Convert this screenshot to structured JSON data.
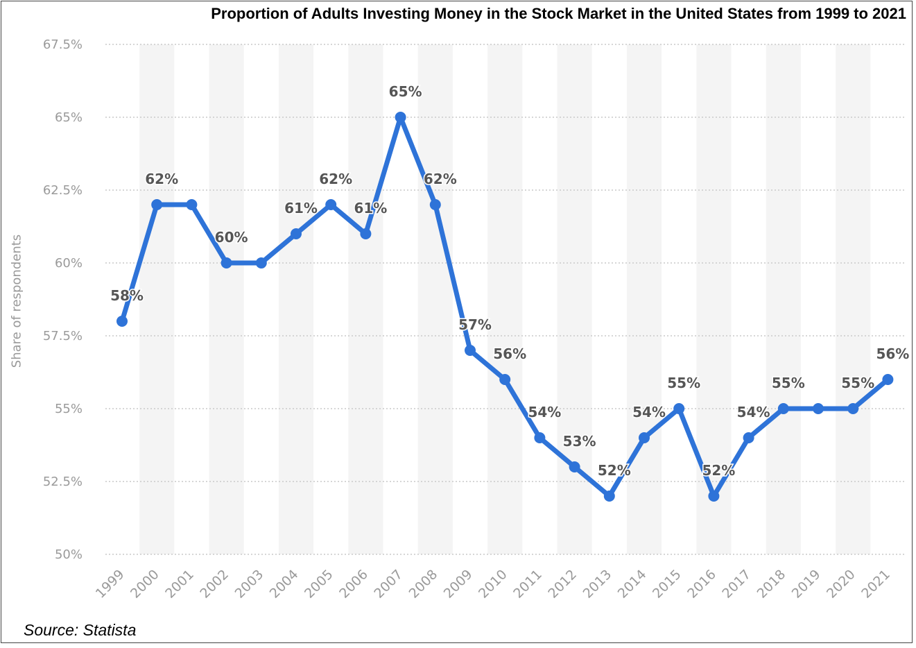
{
  "chart_data": {
    "type": "line",
    "title": "Proportion of Adults Investing Money in the Stock Market in the United States from 1999 to 2021",
    "ylabel": "Share of respondents",
    "xlabel": "",
    "source": "Source: Statista",
    "ylim": [
      50,
      67.5
    ],
    "yticks": [
      50,
      52.5,
      55,
      57.5,
      60,
      62.5,
      65,
      67.5
    ],
    "ytick_labels": [
      "50%",
      "52.5%",
      "55%",
      "57.5%",
      "60%",
      "62.5%",
      "65%",
      "67.5%"
    ],
    "categories": [
      "1999",
      "2000",
      "2001",
      "2002",
      "2003",
      "2004",
      "2005",
      "2006",
      "2007",
      "2008",
      "2009",
      "2010",
      "2011",
      "2012",
      "2013",
      "2014",
      "2015",
      "2016",
      "2017",
      "2018",
      "2019",
      "2020",
      "2021"
    ],
    "series": [
      {
        "values": [
          58,
          62,
          62,
          60,
          60,
          61,
          62,
          61,
          65,
          62,
          57,
          56,
          54,
          53,
          52,
          54,
          55,
          52,
          54,
          55,
          55,
          55,
          56
        ],
        "data_labels": [
          "58%",
          "62%",
          "",
          "60%",
          "",
          "61%",
          "62%",
          "61%",
          "65%",
          "62%",
          "57%",
          "56%",
          "54%",
          "53%",
          "52%",
          "54%",
          "55%",
          "52%",
          "54%",
          "55%",
          "",
          "55%",
          "56%"
        ]
      }
    ],
    "grid": true,
    "line_color": "#2e73d8",
    "band_color": "#f4f4f4",
    "grid_color": "#c9c9c9"
  }
}
